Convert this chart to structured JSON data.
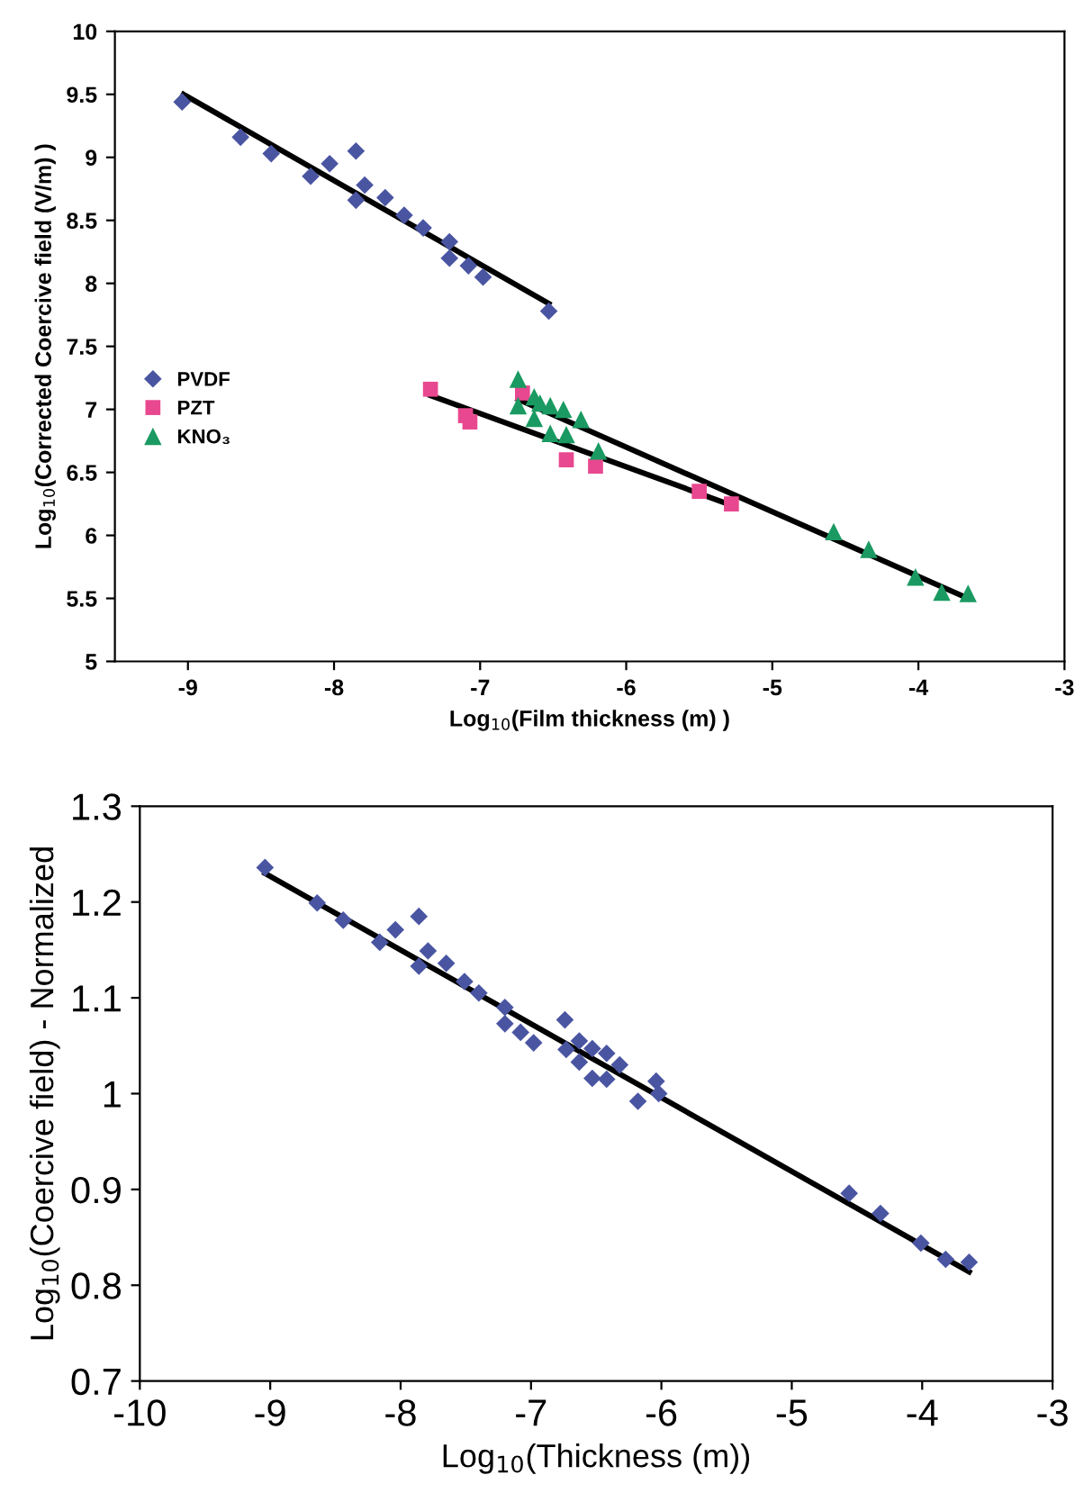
{
  "chart_data": [
    {
      "type": "scatter",
      "xlabel": "Log$_{10}$(Film thickness (m) )",
      "ylabel": "Log$_{10}$(Corrected Coercive field (V/m) )",
      "xlim": [
        -9.5,
        -3
      ],
      "ylim": [
        5,
        10
      ],
      "xticks": [
        -9,
        -8,
        -7,
        -6,
        -5,
        -4,
        -3
      ],
      "yticks": [
        5,
        5.5,
        6,
        6.5,
        7,
        7.5,
        8,
        8.5,
        9,
        9.5,
        10
      ],
      "grid": false,
      "legend": "center left",
      "series": [
        {
          "name": "PVDF",
          "type": "scatter",
          "marker": "diamond",
          "color": "#4a55a2",
          "x": [
            -9.04,
            -8.64,
            -8.43,
            -8.16,
            -8.03,
            -7.85,
            -7.85,
            -7.79,
            -7.65,
            -7.52,
            -7.39,
            -7.21,
            -7.21,
            -7.08,
            -6.98,
            -6.53
          ],
          "values": [
            9.44,
            9.16,
            9.03,
            8.85,
            8.95,
            9.05,
            8.66,
            8.78,
            8.68,
            8.54,
            8.44,
            8.33,
            8.2,
            8.14,
            8.05,
            7.78
          ]
        },
        {
          "name": "PZT",
          "type": "scatter",
          "marker": "square",
          "color": "#e8488f",
          "x": [
            -7.34,
            -7.1,
            -7.07,
            -6.71,
            -6.41,
            -6.21,
            -5.5,
            -5.28
          ],
          "values": [
            7.16,
            6.95,
            6.9,
            7.13,
            6.6,
            6.55,
            6.35,
            6.25
          ]
        },
        {
          "name": "KNO₃",
          "type": "scatter",
          "marker": "triangle",
          "color": "#1a9a62",
          "x": [
            -6.74,
            -6.74,
            -6.63,
            -6.59,
            -6.52,
            -6.43,
            -6.31,
            -6.63,
            -6.52,
            -6.41,
            -6.19,
            -4.58,
            -4.34,
            -4.02,
            -3.84,
            -3.66
          ],
          "values": [
            7.24,
            7.03,
            7.1,
            7.05,
            7.03,
            7.0,
            6.92,
            6.93,
            6.81,
            6.8,
            6.67,
            6.03,
            5.89,
            5.67,
            5.55,
            5.54
          ]
        },
        {
          "type": "line",
          "line_style": "solid",
          "color": "#000000",
          "x": [
            -9.03,
            -6.53
          ],
          "values": [
            9.5,
            7.84
          ]
        },
        {
          "type": "line",
          "line_style": "solid",
          "color": "#000000",
          "x": [
            -7.34,
            -5.28
          ],
          "values": [
            7.11,
            6.24
          ]
        },
        {
          "type": "line",
          "line_style": "solid",
          "color": "#000000",
          "x": [
            -6.74,
            -3.66
          ],
          "values": [
            7.08,
            5.5
          ]
        }
      ]
    },
    {
      "type": "scatter",
      "xlabel": "Log$_{10}$(Thickness (m))",
      "ylabel": "Log$_{10}$(Coercive field) - Normalized",
      "xlim": [
        -10,
        -3
      ],
      "ylim": [
        0.7,
        1.3
      ],
      "xticks": [
        -10,
        -9,
        -8,
        -7,
        -6,
        -5,
        -4,
        -3
      ],
      "yticks": [
        0.7,
        0.8,
        0.9,
        1,
        1.1,
        1.2,
        1.3
      ],
      "grid": false,
      "series": [
        {
          "type": "scatter",
          "marker": "diamond",
          "color": "#4a55a2",
          "x": [
            -9.04,
            -8.64,
            -8.44,
            -8.16,
            -8.04,
            -7.86,
            -7.86,
            -7.79,
            -7.65,
            -7.51,
            -7.4,
            -7.2,
            -7.2,
            -7.08,
            -6.98,
            -6.74,
            -6.73,
            -6.63,
            -6.63,
            -6.53,
            -6.53,
            -6.42,
            -6.42,
            -6.32,
            -6.18,
            -6.04,
            -6.02,
            -4.56,
            -4.32,
            -4.01,
            -3.82,
            -3.64
          ],
          "values": [
            1.236,
            1.199,
            1.181,
            1.158,
            1.171,
            1.185,
            1.133,
            1.149,
            1.136,
            1.117,
            1.105,
            1.09,
            1.073,
            1.064,
            1.053,
            1.077,
            1.046,
            1.055,
            1.033,
            1.047,
            1.016,
            1.042,
            1.015,
            1.03,
            0.992,
            1.013,
            1.0,
            0.896,
            0.875,
            0.844,
            0.827,
            0.824
          ]
        },
        {
          "type": "line",
          "line_style": "solid",
          "color": "#000000",
          "x": [
            -9.04,
            -3.64
          ],
          "values": [
            1.23,
            0.814
          ]
        }
      ]
    }
  ]
}
